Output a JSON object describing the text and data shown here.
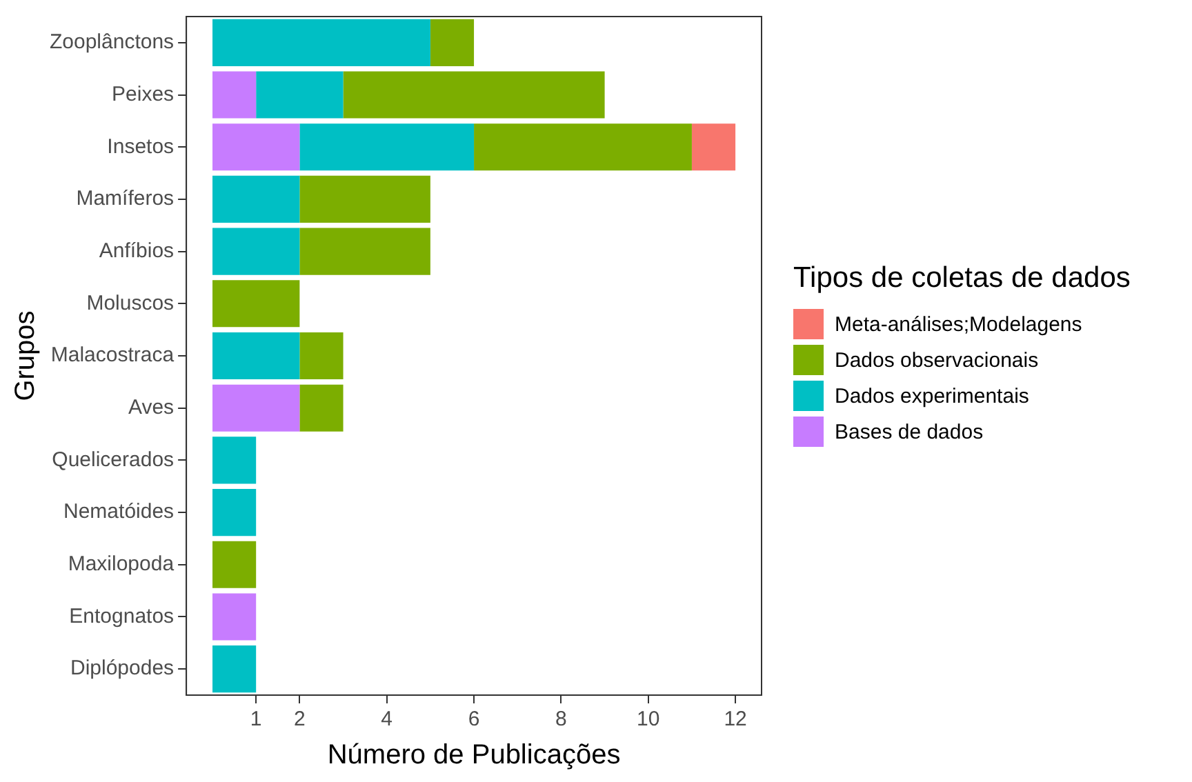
{
  "chart_data": {
    "type": "bar",
    "orientation": "horizontal",
    "stacked": true,
    "xlabel": "Número de Publicações",
    "ylabel": "Grupos",
    "legend_title": "Tipos de coletas de dados",
    "legend": "right",
    "grid": false,
    "categories": [
      "Zooplânctons",
      "Peixes",
      "Insetos",
      "Mamíferos",
      "Anfíbios",
      "Moluscos",
      "Malacostraca",
      "Aves",
      "Quelicerados",
      "Nematóides",
      "Maxilopoda",
      "Entognatos",
      "Diplópodes"
    ],
    "xlim": [
      -0.6,
      12.6
    ],
    "xticks": [
      1,
      2,
      4,
      6,
      8,
      10,
      12
    ],
    "series": [
      {
        "name": "Bases de dados",
        "color": "#c77cff",
        "values": [
          0,
          1,
          2,
          0,
          0,
          0,
          0,
          2,
          0,
          0,
          0,
          1,
          0
        ]
      },
      {
        "name": "Dados experimentais",
        "color": "#00bfc4",
        "values": [
          5,
          2,
          4,
          2,
          2,
          0,
          2,
          0,
          1,
          1,
          0,
          0,
          1
        ]
      },
      {
        "name": "Dados observacionais",
        "color": "#7cae00",
        "values": [
          1,
          6,
          5,
          3,
          3,
          2,
          1,
          1,
          0,
          0,
          1,
          0,
          0
        ]
      },
      {
        "name": "Meta-análises;Modelagens",
        "color": "#f8766d",
        "values": [
          0,
          0,
          1,
          0,
          0,
          0,
          0,
          0,
          0,
          0,
          0,
          0,
          0
        ]
      }
    ]
  }
}
